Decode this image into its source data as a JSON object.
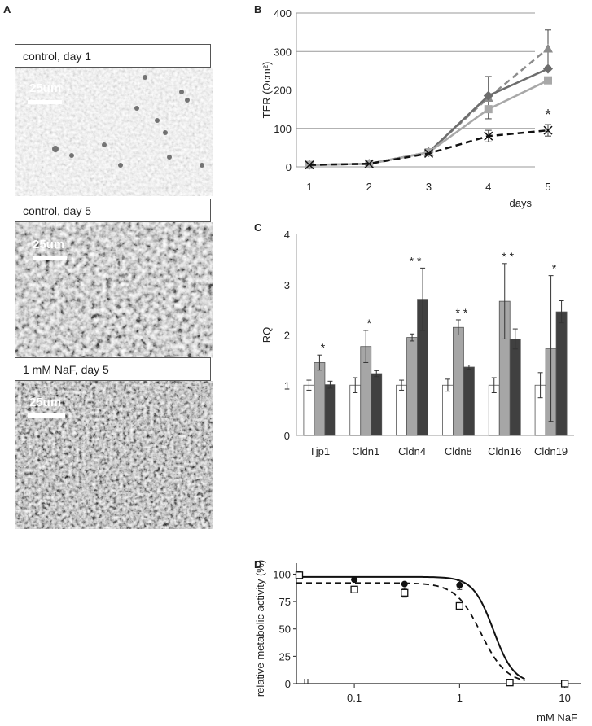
{
  "panels": {
    "A": "A",
    "B": "B",
    "C": "C",
    "D": "D"
  },
  "micrographs": [
    {
      "caption": "control, day 1",
      "scale": "25um"
    },
    {
      "caption": "control, day 5",
      "scale": "25um"
    },
    {
      "caption": "1 mM NaF, day 5",
      "scale": "25um"
    }
  ],
  "chart_data": [
    {
      "panel": "B",
      "type": "line",
      "ylabel": "TER (Ωcm²)",
      "xlabel": "days",
      "x": [
        1,
        2,
        3,
        4,
        5
      ],
      "xlim": [
        1,
        5
      ],
      "ylim": [
        0,
        400
      ],
      "yticks": [
        0,
        100,
        200,
        300,
        400
      ],
      "series": [
        {
          "values": [
            5,
            8,
            38,
            180,
            308
          ],
          "err": [
            0,
            0,
            0,
            55,
            48
          ],
          "color": "#8c8c8c",
          "dash": true,
          "marker": "triangle"
        },
        {
          "values": [
            5,
            8,
            38,
            185,
            255
          ],
          "err": [
            0,
            0,
            0,
            0,
            0
          ],
          "color": "#6d6d6d",
          "dash": false,
          "marker": "diamond"
        },
        {
          "values": [
            5,
            8,
            38,
            150,
            225
          ],
          "err": [
            0,
            0,
            0,
            0,
            0
          ],
          "color": "#a8a8a8",
          "dash": false,
          "marker": "square"
        },
        {
          "values": [
            5,
            8,
            35,
            80,
            95
          ],
          "err": [
            0,
            0,
            0,
            15,
            15
          ],
          "color": "#111111",
          "dash": true,
          "marker": "x"
        }
      ],
      "annotations": [
        {
          "x": 5,
          "y": 140,
          "text": "*"
        }
      ]
    },
    {
      "panel": "C",
      "type": "bar",
      "ylabel": "RQ",
      "ylim": [
        0,
        4
      ],
      "yticks": [
        0,
        1,
        2,
        3,
        4
      ],
      "categories": [
        "Tjp1",
        "Cldn1",
        "Cldn4",
        "Cldn8",
        "Cldn16",
        "Cldn19"
      ],
      "series": [
        {
          "values": [
            1,
            1,
            1,
            1,
            1,
            1
          ],
          "err": [
            0.1,
            0.15,
            0.1,
            0.12,
            0.15,
            0.25
          ],
          "color": "#ffffff"
        },
        {
          "values": [
            1.45,
            1.77,
            1.95,
            2.15,
            2.67,
            1.73
          ],
          "err": [
            0.15,
            0.32,
            0.07,
            0.15,
            0.75,
            1.45
          ],
          "color": "#a6a6a6"
        },
        {
          "values": [
            1.01,
            1.23,
            2.71,
            1.36,
            1.92,
            2.46
          ],
          "err": [
            0.07,
            0.06,
            0.62,
            0.04,
            0.2,
            0.22
          ],
          "color": "#404040"
        }
      ],
      "stars": [
        "*",
        "*",
        "* *",
        "* *",
        "* *",
        "*"
      ]
    },
    {
      "panel": "D",
      "type": "scatter",
      "ylabel": "relative metabolic activity (%)",
      "xlabel": "mM NaF",
      "xscale": "log",
      "xticks": [
        "0.1",
        "1",
        "10"
      ],
      "ylim": [
        0,
        110
      ],
      "yticks": [
        0,
        25,
        50,
        75,
        100
      ],
      "series": [
        {
          "marker": "filled-circle",
          "x": [
            0.03,
            0.1,
            0.3,
            1,
            3,
            10
          ],
          "values": [
            100,
            95,
            91,
            90,
            1,
            0
          ],
          "err": [
            0,
            0,
            0,
            4,
            0,
            0
          ],
          "fit": "solid"
        },
        {
          "marker": "open-square",
          "x": [
            0.03,
            0.1,
            0.3,
            1,
            3,
            10
          ],
          "values": [
            99,
            86,
            83,
            71,
            1,
            0
          ],
          "err": [
            0,
            2,
            4,
            3,
            0,
            0
          ],
          "fit": "dashed"
        }
      ]
    }
  ]
}
